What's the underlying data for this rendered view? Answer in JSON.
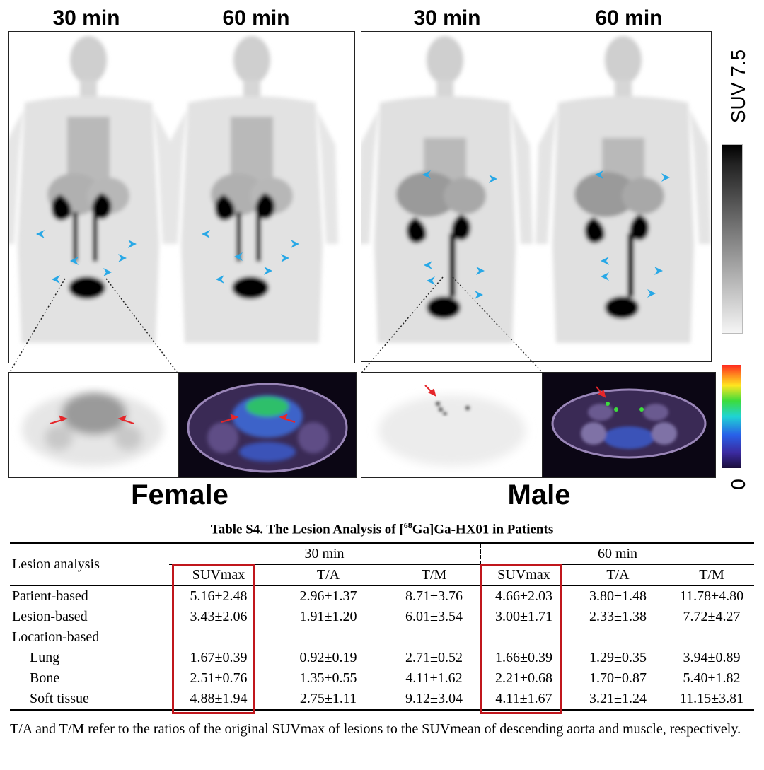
{
  "figure": {
    "female": {
      "times": [
        "30 min",
        "60 min"
      ],
      "label": "Female"
    },
    "male": {
      "times": [
        "30 min",
        "60 min"
      ],
      "label": "Male"
    },
    "colorbar": {
      "max_label": "SUV 7.5",
      "min_label": "0"
    },
    "colors": {
      "arrowhead": "#29a8e6",
      "red_arrow": "#e5262a",
      "highlight_box": "#c0161c"
    }
  },
  "table": {
    "caption": "Table S4. The Lesion Analysis of [68Ga]Ga-HX01 in Patients",
    "row_header": "Lesion analysis",
    "groups": [
      "30 min",
      "60 min"
    ],
    "columns": [
      "SUVmax",
      "T/A",
      "T/M",
      "SUVmax",
      "T/A",
      "T/M"
    ],
    "rows": [
      {
        "label": "Patient-based",
        "values": [
          "5.16±2.48",
          "2.96±1.37",
          "8.71±3.76",
          "4.66±2.03",
          "3.80±1.48",
          "11.78±4.80"
        ]
      },
      {
        "label": "Lesion-based",
        "values": [
          "3.43±2.06",
          "1.91±1.20",
          "6.01±3.54",
          "3.00±1.71",
          "2.33±1.38",
          "7.72±4.27"
        ]
      },
      {
        "label": "Location-based",
        "values": [
          "",
          "",
          "",
          "",
          "",
          ""
        ]
      },
      {
        "label": "Lung",
        "values": [
          "1.67±0.39",
          "0.92±0.19",
          "2.71±0.52",
          "1.66±0.39",
          "1.29±0.35",
          "3.94±0.89"
        ]
      },
      {
        "label": "Bone",
        "values": [
          "2.51±0.76",
          "1.35±0.55",
          "4.11±1.62",
          "2.21±0.68",
          "1.70±0.87",
          "5.40±1.82"
        ]
      },
      {
        "label": "Soft tissue",
        "values": [
          "4.88±1.94",
          "2.75±1.11",
          "9.12±3.04",
          "4.11±1.67",
          "3.21±1.24",
          "11.15±3.81"
        ]
      }
    ],
    "footnote": "T/A and T/M refer to the ratios of the original SUVmax of lesions to the SUVmean of descending aorta and muscle, respectively."
  }
}
